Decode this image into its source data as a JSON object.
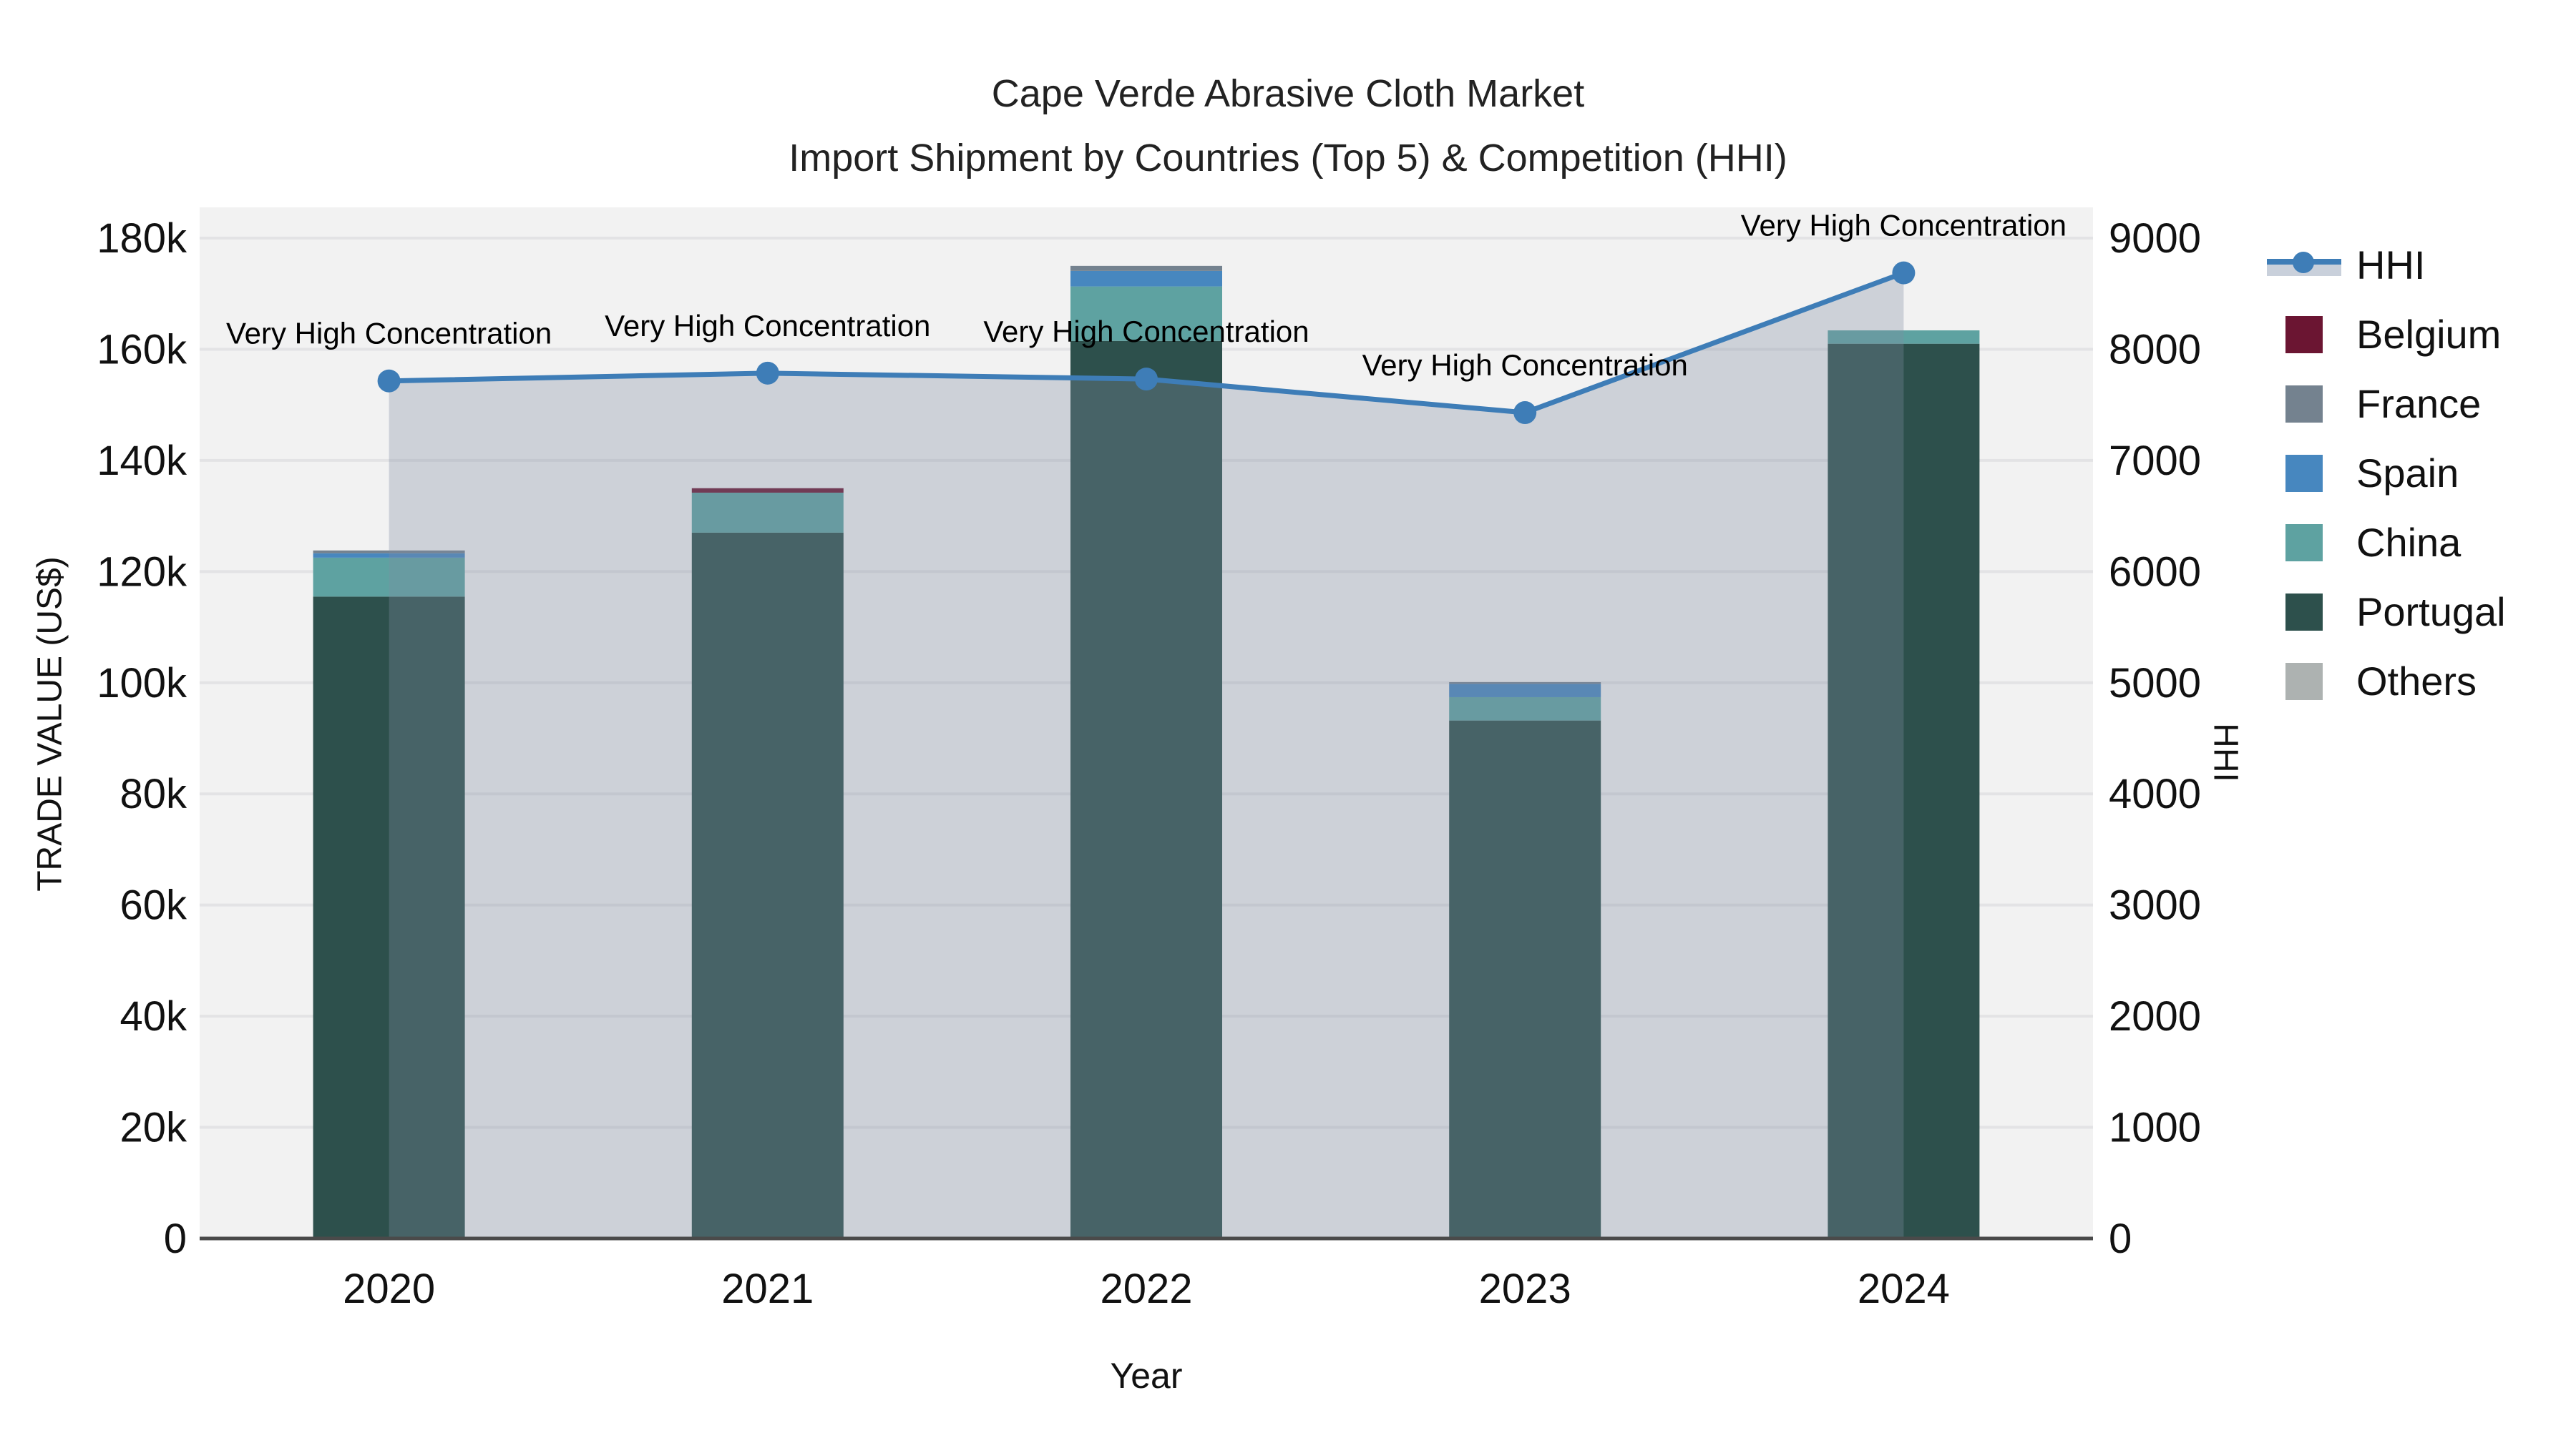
{
  "title": "Cape Verde Abrasive Cloth Market",
  "subtitle": "Import Shipment by Countries (Top 5) & Competition (HHI)",
  "axes": {
    "x_title": "Year",
    "y_left_title": "TRADE VALUE (US$)",
    "y_right_title": "HHI",
    "y_left_tick_labels": [
      "180k",
      "160k",
      "140k",
      "120k",
      "100k",
      "80k",
      "60k",
      "40k",
      "20k",
      "0"
    ],
    "y_right_tick_labels": [
      "9000",
      "8000",
      "7000",
      "6000",
      "5000",
      "4000",
      "3000",
      "2000",
      "1000",
      "0"
    ]
  },
  "legend": {
    "items": [
      {
        "label": "HHI",
        "kind": "line",
        "color": "#3E7DB7",
        "band": "#C9D0DB"
      },
      {
        "label": "Belgium",
        "kind": "square",
        "color": "#6B1532"
      },
      {
        "label": "France",
        "kind": "square",
        "color": "#74828F"
      },
      {
        "label": "Spain",
        "kind": "square",
        "color": "#4787BF"
      },
      {
        "label": "China",
        "kind": "square",
        "color": "#5EA2A1"
      },
      {
        "label": "Portugal",
        "kind": "square",
        "color": "#2D504C"
      },
      {
        "label": "Others",
        "kind": "square",
        "color": "#ADB2B1"
      }
    ]
  },
  "chart_data": {
    "type": "combo-stacked-bar-line",
    "categories": [
      "2020",
      "2021",
      "2022",
      "2023",
      "2024"
    ],
    "bar_axis": {
      "label": "TRADE VALUE (US$)",
      "ylim": [
        0,
        180000
      ],
      "tick_step": 20000
    },
    "line_axis": {
      "label": "HHI",
      "ylim": [
        0,
        9000
      ],
      "tick_step": 1000
    },
    "grid": true,
    "legend_position": "right",
    "series": [
      {
        "name": "Portugal",
        "type": "bar",
        "stack_order": 1,
        "color": "#2D504C",
        "values": [
          115500,
          127000,
          161500,
          93200,
          161000
        ]
      },
      {
        "name": "China",
        "type": "bar",
        "stack_order": 2,
        "color": "#5EA2A1",
        "values": [
          7000,
          7200,
          9800,
          4200,
          2400
        ]
      },
      {
        "name": "Spain",
        "type": "bar",
        "stack_order": 3,
        "color": "#4787BF",
        "values": [
          800,
          0,
          2800,
          2400,
          0
        ]
      },
      {
        "name": "France",
        "type": "bar",
        "stack_order": 4,
        "color": "#74828F",
        "values": [
          500,
          0,
          900,
          300,
          0
        ]
      },
      {
        "name": "Belgium",
        "type": "bar",
        "stack_order": 5,
        "color": "#6B1532",
        "values": [
          0,
          800,
          0,
          0,
          0
        ]
      },
      {
        "name": "Others",
        "type": "bar",
        "stack_order": 6,
        "color": "#ADB2B1",
        "values": [
          0,
          0,
          0,
          0,
          0
        ]
      }
    ],
    "line_series": {
      "name": "HHI",
      "type": "line+area",
      "color": "#3E7DB7",
      "area_fill": "rgba(126,140,162,0.32)",
      "values": [
        7715,
        7785,
        7732,
        7430,
        8687
      ]
    },
    "annotations": [
      {
        "x": "2020",
        "text": "Very High Concentration"
      },
      {
        "x": "2021",
        "text": "Very High Concentration"
      },
      {
        "x": "2022",
        "text": "Very High Concentration"
      },
      {
        "x": "2023",
        "text": "Very High Concentration"
      },
      {
        "x": "2024",
        "text": "Very High Concentration"
      }
    ]
  },
  "colors": {
    "plot_background": "#F2F2F2",
    "paper_background": "#FFFFFF",
    "gridline": "#E3E3E5",
    "zeroline": "#4A4A4A",
    "hhi_line": "#3E7DB7"
  }
}
